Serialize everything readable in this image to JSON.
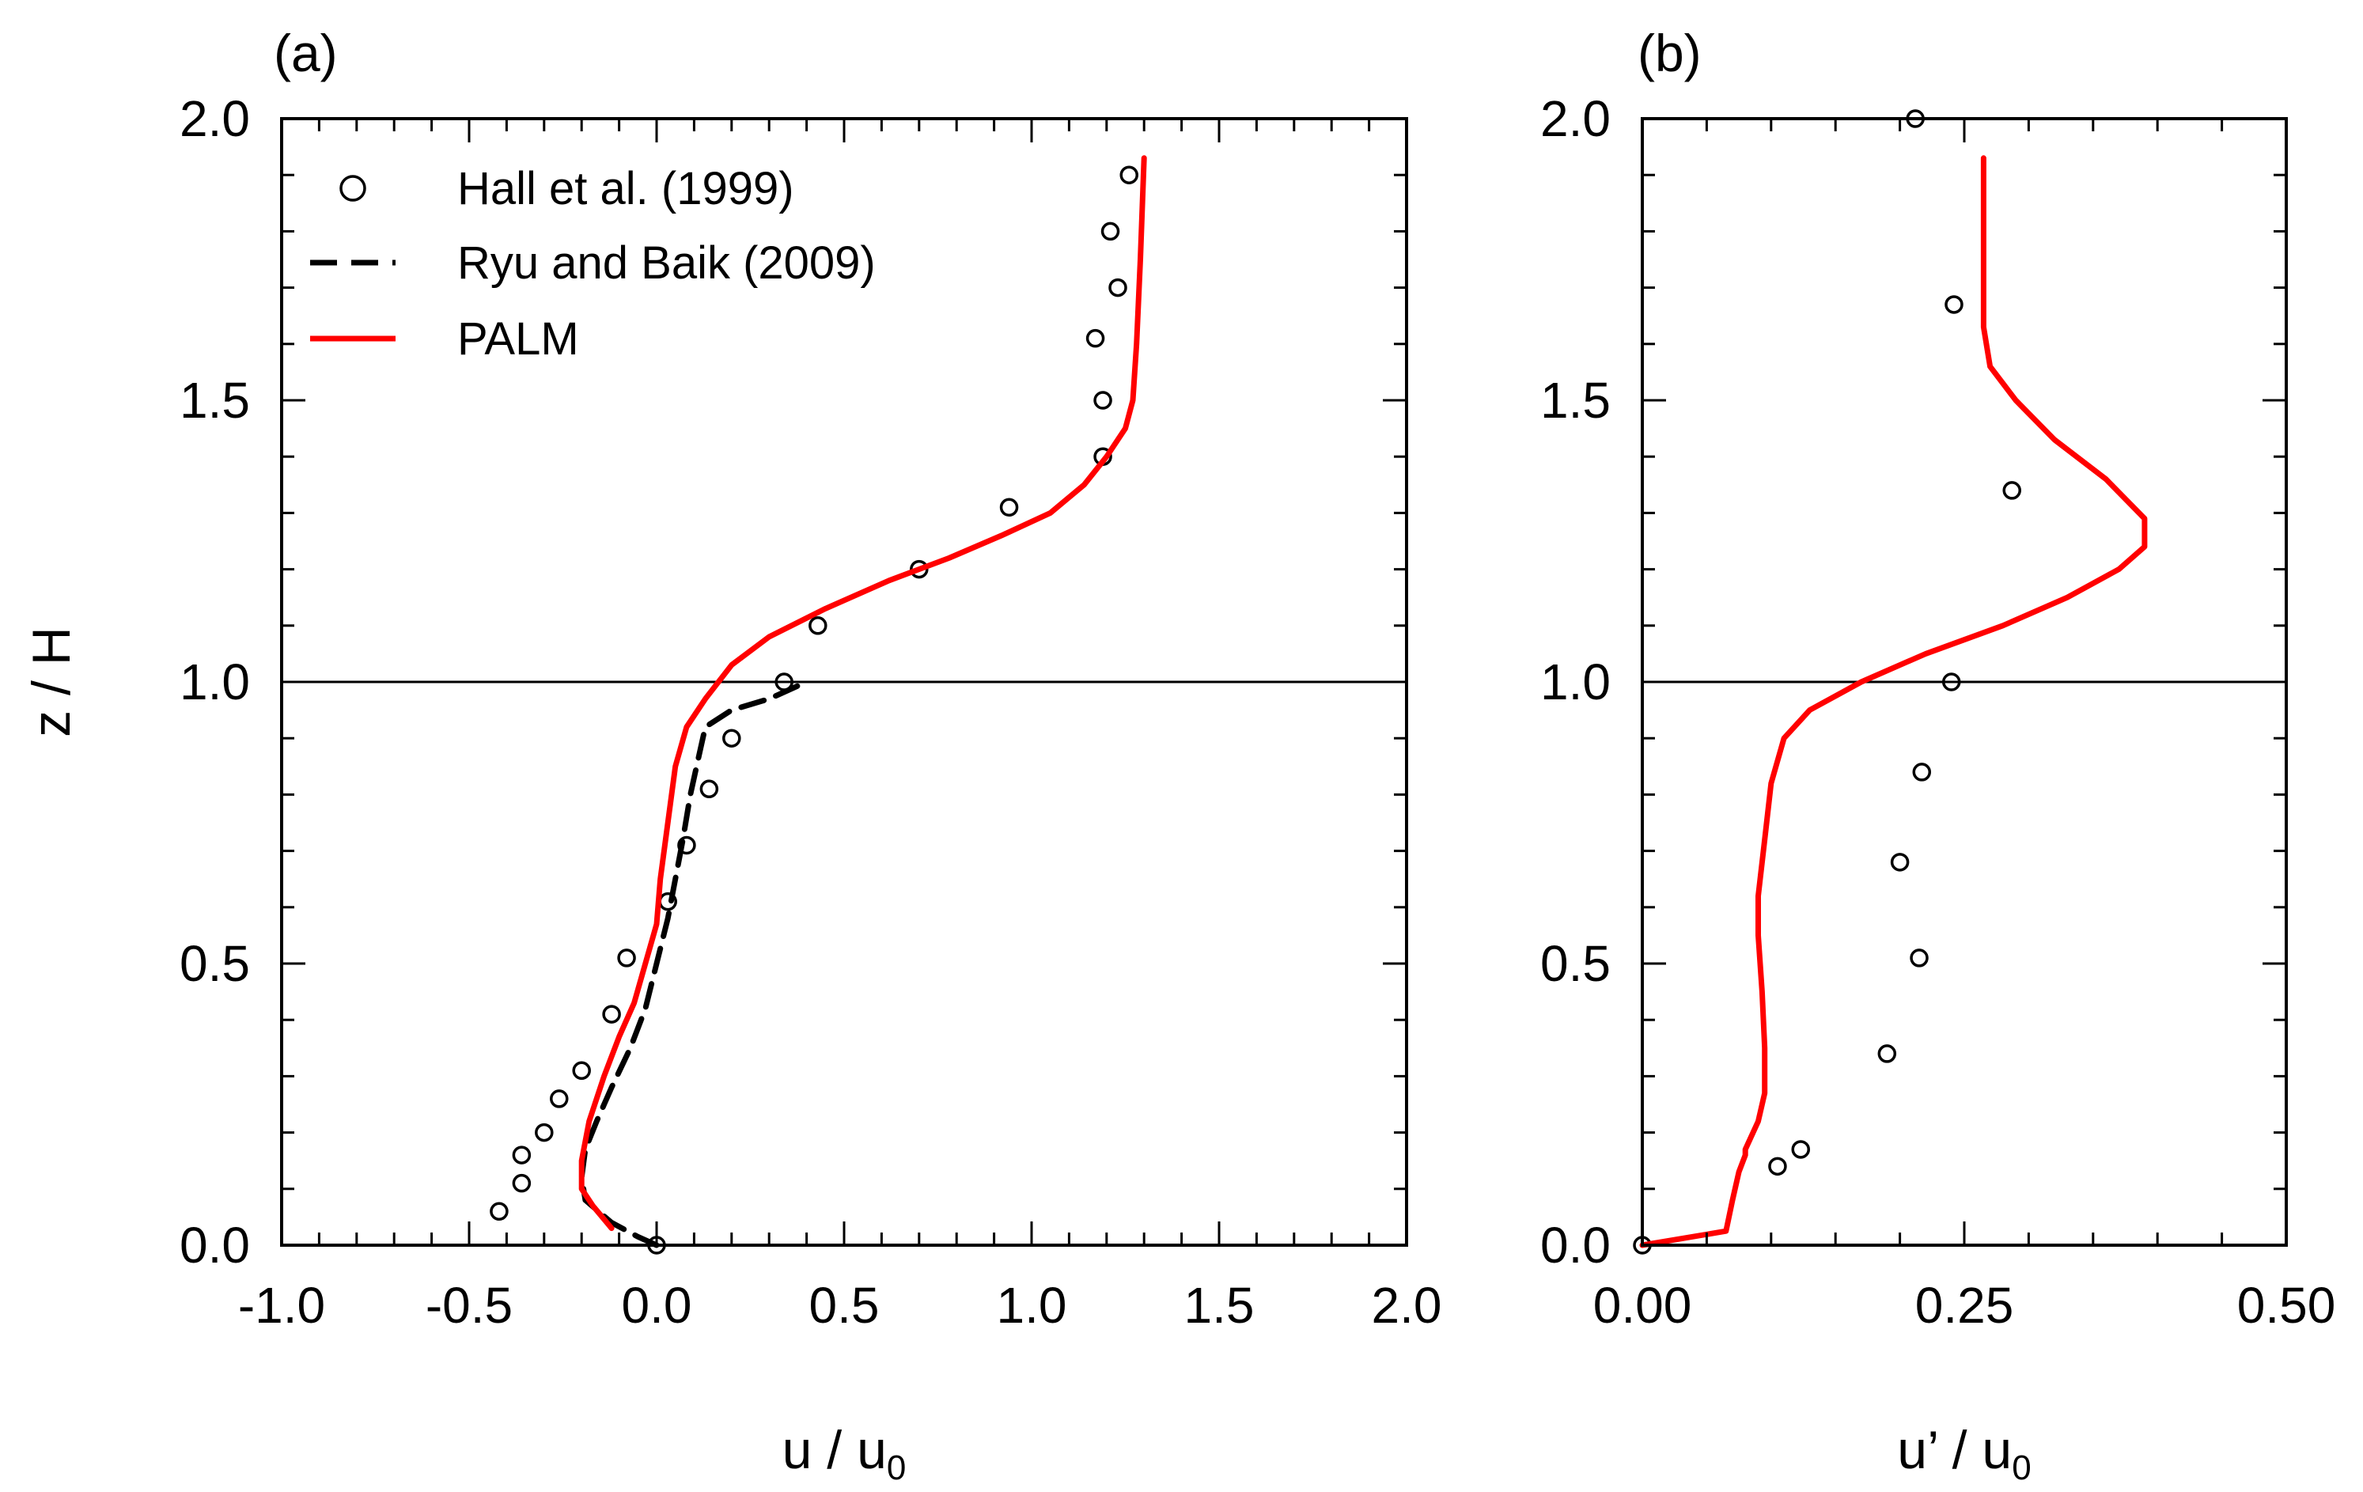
{
  "chart_data": [
    {
      "type": "line",
      "panel_label": "(a)",
      "xlabel": "u / u",
      "xlabel_sub": "0",
      "ylabel": "z / H",
      "xlim": [
        -1.0,
        2.0
      ],
      "ylim": [
        0.0,
        2.0
      ],
      "xticks": [
        "-1.0",
        "-0.5",
        "0.0",
        "0.5",
        "1.0",
        "1.5",
        "2.0"
      ],
      "yticks": [
        "0.0",
        "0.5",
        "1.0",
        "1.5",
        "2.0"
      ],
      "reference_line_y": 1.0,
      "legend_position": "top-left",
      "series": [
        {
          "name": "Hall et al. (1999)",
          "style": "open-circle",
          "color": "#000000",
          "x": [
            0.0,
            -0.42,
            -0.36,
            -0.36,
            -0.3,
            -0.26,
            -0.2,
            -0.12,
            -0.08,
            0.03,
            0.08,
            0.14,
            0.2,
            0.34,
            0.43,
            0.7,
            0.94,
            1.19,
            1.19,
            1.17,
            1.23,
            1.21,
            1.26
          ],
          "y": [
            0.0,
            0.06,
            0.11,
            0.16,
            0.2,
            0.26,
            0.31,
            0.41,
            0.51,
            0.61,
            0.71,
            0.81,
            0.9,
            1.0,
            1.1,
            1.2,
            1.31,
            1.4,
            1.5,
            1.61,
            1.7,
            1.8,
            1.9
          ]
        },
        {
          "name": "Ryu and Baik (2009)",
          "style": "dashed",
          "color": "#000000",
          "x": [
            0.0,
            -0.05,
            -0.12,
            -0.19,
            -0.2,
            -0.19,
            -0.16,
            -0.12,
            -0.07,
            -0.03,
            0.0,
            0.03,
            0.05,
            0.07,
            0.09,
            0.11,
            0.13,
            0.2,
            0.3,
            0.4
          ],
          "y": [
            0.0,
            0.015,
            0.04,
            0.08,
            0.12,
            0.17,
            0.22,
            0.28,
            0.35,
            0.42,
            0.5,
            0.58,
            0.65,
            0.72,
            0.8,
            0.86,
            0.92,
            0.95,
            0.97,
            1.0
          ]
        },
        {
          "name": "PALM",
          "style": "solid",
          "color": "#ff0000",
          "x": [
            -0.12,
            -0.17,
            -0.2,
            -0.2,
            -0.18,
            -0.14,
            -0.1,
            -0.06,
            -0.03,
            0.0,
            0.01,
            0.03,
            0.05,
            0.08,
            0.13,
            0.2,
            0.3,
            0.45,
            0.62,
            0.78,
            0.92,
            1.05,
            1.14,
            1.2,
            1.25,
            1.27,
            1.28,
            1.29,
            1.3
          ],
          "y": [
            0.03,
            0.07,
            0.1,
            0.15,
            0.22,
            0.3,
            0.37,
            0.43,
            0.5,
            0.57,
            0.65,
            0.75,
            0.85,
            0.92,
            0.97,
            1.03,
            1.08,
            1.13,
            1.18,
            1.22,
            1.26,
            1.3,
            1.35,
            1.4,
            1.45,
            1.5,
            1.6,
            1.75,
            1.93
          ]
        }
      ]
    },
    {
      "type": "line",
      "panel_label": "(b)",
      "xlabel": "u’ / u",
      "xlabel_sub": "0",
      "ylabel": "",
      "xlim": [
        0.0,
        0.5
      ],
      "ylim": [
        0.0,
        2.0
      ],
      "xticks": [
        "0.00",
        "0.25",
        "0.50"
      ],
      "yticks": [
        "0.0",
        "0.5",
        "1.0",
        "1.5",
        "2.0"
      ],
      "reference_line_y": 1.0,
      "series": [
        {
          "name": "Hall et al. (1999)",
          "style": "open-circle",
          "color": "#000000",
          "x": [
            0.0,
            0.105,
            0.123,
            0.19,
            0.215,
            0.2,
            0.217,
            0.24,
            0.287,
            0.242,
            0.212
          ],
          "y": [
            0.0,
            0.14,
            0.17,
            0.34,
            0.51,
            0.68,
            0.84,
            1.0,
            1.34,
            1.67,
            2.0
          ]
        },
        {
          "name": "PALM",
          "style": "solid",
          "color": "#ff0000",
          "x": [
            0.0,
            0.065,
            0.07,
            0.075,
            0.08,
            0.08,
            0.09,
            0.095,
            0.095,
            0.093,
            0.09,
            0.09,
            0.095,
            0.1,
            0.11,
            0.13,
            0.17,
            0.22,
            0.28,
            0.33,
            0.37,
            0.39,
            0.39,
            0.36,
            0.32,
            0.29,
            0.27,
            0.265,
            0.265,
            0.265
          ],
          "y": [
            0.0,
            0.025,
            0.08,
            0.13,
            0.16,
            0.17,
            0.22,
            0.27,
            0.35,
            0.45,
            0.55,
            0.62,
            0.72,
            0.82,
            0.9,
            0.95,
            1.0,
            1.05,
            1.1,
            1.15,
            1.2,
            1.24,
            1.29,
            1.36,
            1.43,
            1.5,
            1.56,
            1.63,
            1.75,
            1.93
          ]
        }
      ]
    }
  ]
}
